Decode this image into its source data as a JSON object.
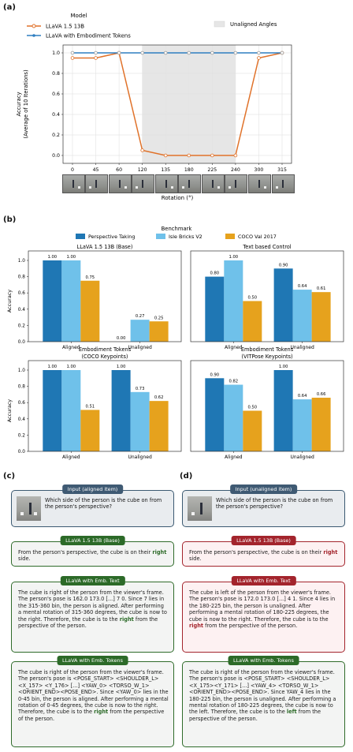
{
  "panels": {
    "a": "(a)",
    "b": "(b)",
    "c": "(c)",
    "d": "(d)"
  },
  "colors": {
    "llava": "#e0722a",
    "emb": "#2f7fc1",
    "shade": "#e6e6e6",
    "persp": "#1f77b4",
    "isle": "#6fc1ea",
    "coco": "#e6a21d"
  },
  "chart_data": [
    {
      "type": "line",
      "legend_title": "Model",
      "legend_extra": "Unaligned Angles",
      "xlabel": "Rotation (°)",
      "ylabel": "Accuracy",
      "ylabel2": "(Average of 10 Iterations)",
      "categories": [
        "0",
        "45",
        "60",
        "120",
        "135",
        "180",
        "225",
        "240",
        "300",
        "315"
      ],
      "ylim": [
        0,
        1
      ],
      "yticks": [
        "0.0",
        "0.2",
        "0.4",
        "0.6",
        "0.8",
        "1.0"
      ],
      "shaded_range": [
        "120",
        "240"
      ],
      "series": [
        {
          "name": "LLaVA 1.5 13B",
          "values": [
            0.95,
            0.95,
            1.0,
            0.05,
            0.0,
            0.0,
            0.0,
            0.0,
            0.95,
            1.0
          ]
        },
        {
          "name": "LLaVA with Embodiment Tokens",
          "values": [
            1.0,
            1.0,
            1.0,
            1.0,
            1.0,
            1.0,
            1.0,
            1.0,
            1.0,
            1.0
          ]
        }
      ]
    },
    {
      "type": "bar",
      "legend_title": "Benchmark",
      "series_names": [
        "Perspective Taking",
        "Isle Bricks V2",
        "COCO Val 2017"
      ],
      "ylabel": "Accuracy",
      "yticks": [
        "0.0",
        "0.2",
        "0.4",
        "0.6",
        "0.8",
        "1.0"
      ],
      "categories": [
        "Aligned",
        "Unaligned"
      ],
      "subplots": [
        {
          "title1": "LLaVA 1.5 13B (Base)",
          "title2": "",
          "groups": [
            [
              1.0,
              1.0,
              0.75
            ],
            [
              0.0,
              0.27,
              0.25
            ]
          ],
          "labels": [
            [
              "1.00",
              "1.00",
              "0.75"
            ],
            [
              "0.00",
              "0.27",
              "0.25"
            ]
          ]
        },
        {
          "title1": "Text based Control",
          "title2": "",
          "groups": [
            [
              0.8,
              1.0,
              0.5
            ],
            [
              0.9,
              0.64,
              0.61
            ]
          ],
          "labels": [
            [
              "0.80",
              "1.00",
              "0.50"
            ],
            [
              "0.90",
              "0.64",
              "0.61"
            ]
          ]
        },
        {
          "title1": "Embodiment Tokens",
          "title2": "(COCO Keypoints)",
          "groups": [
            [
              1.0,
              1.0,
              0.51
            ],
            [
              1.0,
              0.73,
              0.62
            ]
          ],
          "labels": [
            [
              "1.00",
              "1.00",
              "0.51"
            ],
            [
              "1.00",
              "0.73",
              "0.62"
            ]
          ]
        },
        {
          "title1": "Embodiment Tokens",
          "title2": "(VITPose Keypoints)",
          "groups": [
            [
              0.9,
              0.82,
              0.5
            ],
            [
              1.0,
              0.64,
              0.66
            ]
          ],
          "labels": [
            [
              "0.90",
              "0.82",
              "0.50"
            ],
            [
              "1.00",
              "0.64",
              "0.66"
            ]
          ]
        }
      ]
    }
  ],
  "left": {
    "input_head": "Input (aligned item)",
    "question": "Which side of the person is the cube on from the person's perspective?",
    "c1_head": "LLaVA 1.5 13B (Base)",
    "c1_pre": "From the person's perspective, the cube is on their ",
    "c1_key": "right",
    "c1_post": " side.",
    "c2_head": "LLaVA with Emb. Text",
    "c2_pre": "The cube is right of the person from the viewer's frame. The person's pose is 162.0 173.0 [...] 7 0. Since 7 lies in the 315-360 bin, the person is aligned. After performing a mental rotation of 315-360 degrees, the cube is now to the right. Therefore, the cube is to the ",
    "c2_key": "right",
    "c2_post": " from the perspective of the person.",
    "c3_head": "LLaVA with Emb. Tokens",
    "c3_pre": "The cube is right of the person from the viewer's frame. The person's pose is <POSE_START> <SHOULDER_L><X_157> <Y_176> [...] <YAW_0> <TORSO_W_1> <ORIENT_END><POSE_END>. Since <YAW_0> lies in the 0-45 bin, the person is aligned. After performing a mental rotation of 0-45 degrees, the cube is now to the right. Therefore, the cube is to the ",
    "c3_key": "right",
    "c3_post": " from the perspective of the person."
  },
  "right": {
    "input_head": "Input (unaligned item)",
    "question": "Which side of the person is the cube on from the person's perspective?",
    "c1_head": "LLaVA 1.5 13B (Base)",
    "c1_pre": "From the person's perspective, the cube is on their ",
    "c1_key": "right",
    "c1_post": " side.",
    "c2_head": "LLaVA with Emb. Text",
    "c2_pre": "The cube is left of the person from the viewer's frame. The person's pose is 172.0 173.0 [...] 4 1. Since 4 lies in the 180-225 bin, the person is unaligned. After performing a mental rotation of 180-225 degrees, the cube is now to the right. Therefore, the cube is to the ",
    "c2_key": "right",
    "c2_post": " from the perspective of the person.",
    "c3_head": "LLaVA with Emb. Tokens",
    "c3_pre": "The cube is right of the person from the viewer's frame. The person's pose is <POSE_START> <SHOULDER_L><X_175><Y_171> [...] <YAW_4> <TORSO_W_1><ORIENT_END><POSE_END>. Since YAW_4 lies in the 180-225 bin, the person is unaligned. After performing a mental rotation of 180-225 degrees, the cube is now to the left. Therefore, the cube is to the ",
    "c3_key": "left",
    "c3_post": " from the perspective of the person."
  }
}
